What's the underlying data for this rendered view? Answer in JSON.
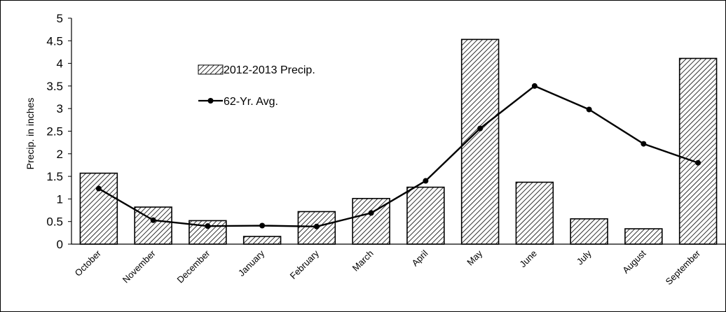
{
  "chart_data": {
    "type": "bar",
    "categories": [
      "October",
      "November",
      "December",
      "January",
      "February",
      "March",
      "April",
      "May",
      "June",
      "July",
      "August",
      "September"
    ],
    "series": [
      {
        "name": "2012-2013 Precip.",
        "type": "bar",
        "values": [
          1.57,
          0.82,
          0.52,
          0.17,
          0.72,
          1.01,
          1.26,
          4.53,
          1.37,
          0.56,
          0.34,
          4.11
        ]
      },
      {
        "name": "62-Yr. Avg.",
        "type": "line",
        "values": [
          1.23,
          0.53,
          0.4,
          0.41,
          0.39,
          0.69,
          1.4,
          2.56,
          3.5,
          2.98,
          2.22,
          1.8
        ]
      }
    ],
    "title": "",
    "xlabel": "",
    "ylabel": "Precip. in inches",
    "ylim": [
      0,
      5
    ],
    "yticks": [
      "0",
      "0.5",
      "1",
      "1.5",
      "2",
      "2.5",
      "3",
      "3.5",
      "4",
      "4.5",
      "5"
    ],
    "grid": false,
    "legend": "upper-left inside plot area",
    "colors": {
      "bar_stroke": "#000000",
      "bar_hatch": "#000000",
      "line": "#000000"
    }
  }
}
